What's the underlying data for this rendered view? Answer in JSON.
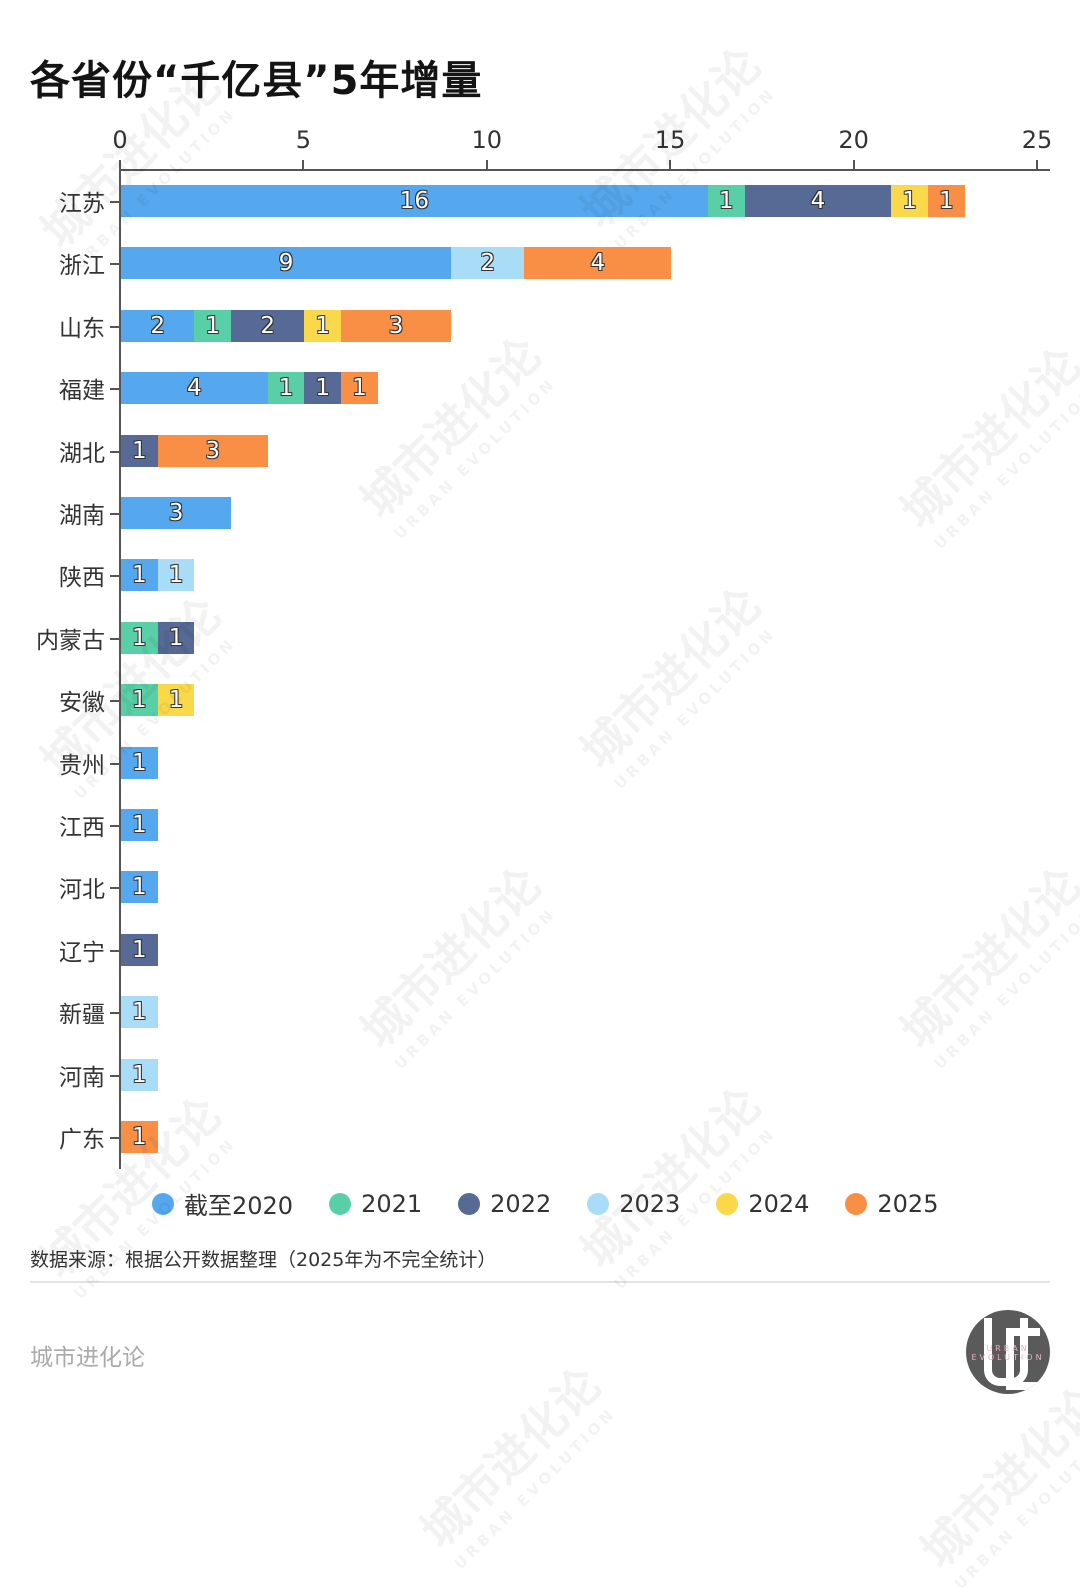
{
  "title": "各省份“千亿县”5年增量",
  "axis": {
    "ticks": [
      "0",
      "5",
      "10",
      "15",
      "20",
      "25"
    ],
    "tick_values": [
      0,
      5,
      10,
      15,
      20,
      25
    ]
  },
  "colors": {
    "截至2020": "#56a8ee",
    "2021": "#58cfa6",
    "2022": "#566a95",
    "2023": "#a9dcf6",
    "2024": "#f9d84a",
    "2025": "#f98f45"
  },
  "legend": [
    {
      "label": "截至2020",
      "color": "#56a8ee"
    },
    {
      "label": "2021",
      "color": "#58cfa6"
    },
    {
      "label": "2022",
      "color": "#566a95"
    },
    {
      "label": "2023",
      "color": "#a9dcf6"
    },
    {
      "label": "2024",
      "color": "#f9d84a"
    },
    {
      "label": "2025",
      "color": "#f98f45"
    }
  ],
  "source": "数据来源：根据公开数据整理（2025年为不完全统计）",
  "brand": "城市进化论",
  "logo_text": "URBAN EVOLUTION",
  "watermark": {
    "cn": "城市进化论",
    "en": "URBAN EVOLUTION"
  },
  "chart_data": {
    "type": "bar",
    "orientation": "horizontal",
    "stacked": true,
    "title": "各省份“千亿县”5年增量",
    "xlabel": "",
    "ylabel": "",
    "xlim": [
      0,
      25
    ],
    "x_ticks": [
      0,
      5,
      10,
      15,
      20,
      25
    ],
    "x_axis_position": "top",
    "grid": false,
    "legend_position": "bottom",
    "categories": [
      "江苏",
      "浙江",
      "山东",
      "福建",
      "湖北",
      "湖南",
      "陕西",
      "内蒙古",
      "安徽",
      "贵州",
      "江西",
      "河北",
      "辽宁",
      "新疆",
      "河南",
      "广东"
    ],
    "series": [
      {
        "name": "截至2020",
        "color": "#56a8ee",
        "values": [
          16,
          9,
          2,
          4,
          0,
          3,
          1,
          0,
          0,
          1,
          1,
          1,
          0,
          0,
          0,
          0
        ]
      },
      {
        "name": "2021",
        "color": "#58cfa6",
        "values": [
          1,
          0,
          1,
          1,
          0,
          0,
          0,
          1,
          1,
          0,
          0,
          0,
          0,
          0,
          0,
          0
        ]
      },
      {
        "name": "2022",
        "color": "#566a95",
        "values": [
          4,
          0,
          2,
          1,
          1,
          0,
          0,
          1,
          0,
          0,
          0,
          0,
          1,
          0,
          0,
          0
        ]
      },
      {
        "name": "2023",
        "color": "#a9dcf6",
        "values": [
          0,
          2,
          0,
          0,
          0,
          0,
          1,
          0,
          0,
          0,
          0,
          0,
          0,
          1,
          1,
          0
        ]
      },
      {
        "name": "2024",
        "color": "#f9d84a",
        "values": [
          1,
          0,
          1,
          0,
          0,
          0,
          0,
          0,
          1,
          0,
          0,
          0,
          0,
          0,
          0,
          0
        ]
      },
      {
        "name": "2025",
        "color": "#f98f45",
        "values": [
          1,
          4,
          3,
          1,
          3,
          0,
          0,
          0,
          0,
          0,
          0,
          0,
          0,
          0,
          0,
          1
        ]
      }
    ],
    "totals": [
      23,
      15,
      9,
      7,
      4,
      3,
      2,
      2,
      2,
      1,
      1,
      1,
      1,
      1,
      1,
      1
    ],
    "source": "数据来源：根据公开数据整理（2025年为不完全统计）"
  }
}
